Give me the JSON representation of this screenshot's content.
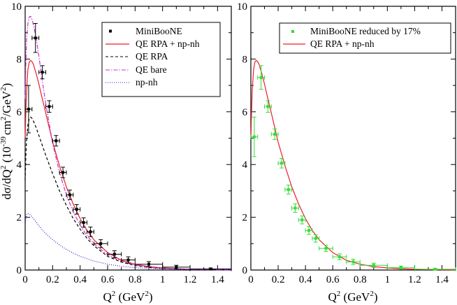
{
  "chart_data": [
    {
      "type": "line",
      "panel": "left",
      "xlabel": "Q",
      "xlabel_sup": "2",
      "xlabel_unit": " (GeV",
      "xlabel_unit_sup": "2",
      "xlabel_close": ")",
      "ylabel": {
        "lhs": "dσ/dQ",
        "lhs_sup": "2",
        "unit_open": " (10",
        "unit_exp": "-39",
        "unit_cm": "cm",
        "unit_cm_sup": "2",
        "unit_slash": "/GeV",
        "unit_gev_sup": "2",
        "unit_close": ")"
      },
      "xlim": [
        0,
        1.5
      ],
      "ylim": [
        0,
        10
      ],
      "xticks": [
        "0",
        "0.2",
        "0.4",
        "0.6",
        "0.8",
        "1",
        "1.2",
        "1.4"
      ],
      "yticks": [
        "0",
        "2",
        "4",
        "6",
        "8",
        "10"
      ],
      "legend": [
        {
          "label": "MiniBooNE",
          "style": "marker",
          "color": "#000000"
        },
        {
          "label": "QE RPA + np-nh",
          "style": "solid",
          "color": "#e8202a"
        },
        {
          "label": "QE RPA",
          "style": "dashed",
          "color": "#000000"
        },
        {
          "label": "QE bare",
          "style": "dashdot",
          "color": "#cc33cc"
        },
        {
          "label": "np-nh",
          "style": "dotted",
          "color": "#2222cc"
        }
      ],
      "points": [
        {
          "x": 0.025,
          "y": 6.1,
          "xerr": 0.025,
          "yerr": 0.9
        },
        {
          "x": 0.075,
          "y": 8.8,
          "xerr": 0.025,
          "yerr": 0.55
        },
        {
          "x": 0.125,
          "y": 7.5,
          "xerr": 0.025,
          "yerr": 0.25
        },
        {
          "x": 0.175,
          "y": 6.2,
          "xerr": 0.025,
          "yerr": 0.22
        },
        {
          "x": 0.225,
          "y": 4.9,
          "xerr": 0.025,
          "yerr": 0.2
        },
        {
          "x": 0.275,
          "y": 3.7,
          "xerr": 0.025,
          "yerr": 0.2
        },
        {
          "x": 0.325,
          "y": 2.85,
          "xerr": 0.025,
          "yerr": 0.18
        },
        {
          "x": 0.375,
          "y": 2.3,
          "xerr": 0.025,
          "yerr": 0.18
        },
        {
          "x": 0.425,
          "y": 1.8,
          "xerr": 0.025,
          "yerr": 0.18
        },
        {
          "x": 0.475,
          "y": 1.45,
          "xerr": 0.025,
          "yerr": 0.18
        },
        {
          "x": 0.55,
          "y": 1.0,
          "xerr": 0.05,
          "yerr": 0.15
        },
        {
          "x": 0.65,
          "y": 0.6,
          "xerr": 0.05,
          "yerr": 0.13
        },
        {
          "x": 0.75,
          "y": 0.38,
          "xerr": 0.05,
          "yerr": 0.12
        },
        {
          "x": 0.9,
          "y": 0.22,
          "xerr": 0.1,
          "yerr": 0.1
        },
        {
          "x": 1.1,
          "y": 0.11,
          "xerr": 0.1,
          "yerr": 0.07
        },
        {
          "x": 1.35,
          "y": 0.04,
          "xerr": 0.15,
          "yerr": 0.04
        }
      ],
      "series": [
        {
          "name": "QE RPA + np-nh",
          "style": "solid",
          "color": "#e8202a",
          "x": [
            0,
            0.005,
            0.01,
            0.02,
            0.03,
            0.04,
            0.05,
            0.06,
            0.08,
            0.1,
            0.12,
            0.15,
            0.2,
            0.25,
            0.3,
            0.35,
            0.4,
            0.45,
            0.5,
            0.6,
            0.7,
            0.8,
            0.9,
            1.0,
            1.1,
            1.2,
            1.3,
            1.4,
            1.5
          ],
          "y": [
            5.0,
            6.0,
            6.8,
            7.6,
            7.9,
            7.95,
            7.9,
            7.8,
            7.45,
            7.05,
            6.6,
            5.95,
            4.85,
            3.95,
            3.15,
            2.5,
            1.95,
            1.5,
            1.15,
            0.66,
            0.37,
            0.22,
            0.13,
            0.08,
            0.05,
            0.03,
            0.02,
            0.012,
            0.008
          ]
        },
        {
          "name": "QE RPA",
          "style": "dashed",
          "color": "#000000",
          "x": [
            0,
            0.005,
            0.01,
            0.02,
            0.03,
            0.04,
            0.05,
            0.06,
            0.08,
            0.1,
            0.12,
            0.15,
            0.2,
            0.25,
            0.3,
            0.35,
            0.4,
            0.45,
            0.5,
            0.6,
            0.7,
            0.8,
            0.9,
            1.0,
            1.2,
            1.4,
            1.5
          ],
          "y": [
            3.4,
            4.3,
            4.9,
            5.5,
            5.75,
            5.8,
            5.75,
            5.65,
            5.4,
            5.1,
            4.8,
            4.35,
            3.65,
            3.0,
            2.45,
            1.95,
            1.55,
            1.2,
            0.92,
            0.52,
            0.3,
            0.17,
            0.1,
            0.06,
            0.025,
            0.01,
            0.006
          ]
        },
        {
          "name": "QE bare",
          "style": "dashdot",
          "color": "#cc33cc",
          "x": [
            0,
            0.005,
            0.01,
            0.02,
            0.03,
            0.04,
            0.05,
            0.06,
            0.08,
            0.1,
            0.12,
            0.15,
            0.2,
            0.25,
            0.3,
            0.35,
            0.4,
            0.45,
            0.5,
            0.6,
            0.7,
            0.8,
            0.9,
            1.0,
            1.2,
            1.4,
            1.5
          ],
          "y": [
            6.5,
            7.8,
            8.7,
            9.35,
            9.6,
            9.62,
            9.5,
            9.3,
            8.8,
            8.1,
            7.35,
            6.3,
            4.8,
            3.7,
            2.85,
            2.2,
            1.7,
            1.3,
            1.0,
            0.58,
            0.33,
            0.19,
            0.11,
            0.065,
            0.025,
            0.01,
            0.006
          ]
        },
        {
          "name": "np-nh",
          "style": "dotted",
          "color": "#2222cc",
          "x": [
            0,
            0.005,
            0.01,
            0.02,
            0.03,
            0.04,
            0.05,
            0.06,
            0.08,
            0.1,
            0.12,
            0.15,
            0.2,
            0.25,
            0.3,
            0.35,
            0.4,
            0.5,
            0.6,
            0.7,
            0.8,
            0.9,
            1.0,
            1.2,
            1.4,
            1.5
          ],
          "y": [
            1.7,
            1.95,
            2.1,
            2.15,
            2.12,
            2.08,
            2.02,
            1.95,
            1.82,
            1.68,
            1.55,
            1.38,
            1.15,
            0.95,
            0.78,
            0.64,
            0.52,
            0.34,
            0.22,
            0.14,
            0.09,
            0.06,
            0.04,
            0.02,
            0.01,
            0.005
          ]
        }
      ]
    },
    {
      "type": "line",
      "panel": "right",
      "xlabel": "Q",
      "xlabel_sup": "2",
      "xlabel_unit": " (GeV",
      "xlabel_unit_sup": "2",
      "xlabel_close": ")",
      "xlim": [
        0,
        1.5
      ],
      "ylim": [
        0,
        10
      ],
      "xticks": [
        "0",
        "0.2",
        "0.4",
        "0.6",
        "0.8",
        "1",
        "1.2",
        "1.4"
      ],
      "yticks": [
        "0",
        "2",
        "4",
        "6",
        "8",
        "10"
      ],
      "legend": [
        {
          "label": "MiniBooNE reduced by 17%",
          "style": "marker",
          "color": "#33dd33"
        },
        {
          "label": "QE RPA + np-nh",
          "style": "solid",
          "color": "#e8202a"
        }
      ],
      "points": [
        {
          "x": 0.025,
          "y": 5.05,
          "xerr": 0.025,
          "yerr": 0.75
        },
        {
          "x": 0.075,
          "y": 7.3,
          "xerr": 0.025,
          "yerr": 0.45
        },
        {
          "x": 0.125,
          "y": 6.2,
          "xerr": 0.025,
          "yerr": 0.22
        },
        {
          "x": 0.175,
          "y": 5.15,
          "xerr": 0.025,
          "yerr": 0.2
        },
        {
          "x": 0.225,
          "y": 4.05,
          "xerr": 0.025,
          "yerr": 0.18
        },
        {
          "x": 0.275,
          "y": 3.05,
          "xerr": 0.025,
          "yerr": 0.17
        },
        {
          "x": 0.325,
          "y": 2.35,
          "xerr": 0.025,
          "yerr": 0.16
        },
        {
          "x": 0.375,
          "y": 1.9,
          "xerr": 0.025,
          "yerr": 0.15
        },
        {
          "x": 0.425,
          "y": 1.5,
          "xerr": 0.025,
          "yerr": 0.15
        },
        {
          "x": 0.475,
          "y": 1.2,
          "xerr": 0.025,
          "yerr": 0.14
        },
        {
          "x": 0.55,
          "y": 0.82,
          "xerr": 0.05,
          "yerr": 0.12
        },
        {
          "x": 0.65,
          "y": 0.5,
          "xerr": 0.05,
          "yerr": 0.11
        },
        {
          "x": 0.75,
          "y": 0.31,
          "xerr": 0.05,
          "yerr": 0.1
        },
        {
          "x": 0.9,
          "y": 0.18,
          "xerr": 0.1,
          "yerr": 0.08
        },
        {
          "x": 1.1,
          "y": 0.09,
          "xerr": 0.1,
          "yerr": 0.06
        },
        {
          "x": 1.35,
          "y": 0.03,
          "xerr": 0.15,
          "yerr": 0.03
        }
      ],
      "series": [
        {
          "name": "QE RPA + np-nh",
          "style": "solid",
          "color": "#e8202a",
          "x": [
            0,
            0.005,
            0.01,
            0.02,
            0.03,
            0.04,
            0.05,
            0.06,
            0.08,
            0.1,
            0.12,
            0.15,
            0.2,
            0.25,
            0.3,
            0.35,
            0.4,
            0.45,
            0.5,
            0.6,
            0.7,
            0.8,
            0.9,
            1.0,
            1.1,
            1.2,
            1.3,
            1.4,
            1.5
          ],
          "y": [
            5.0,
            6.0,
            6.8,
            7.6,
            7.9,
            7.95,
            7.9,
            7.8,
            7.45,
            7.05,
            6.6,
            5.95,
            4.85,
            3.95,
            3.15,
            2.5,
            1.95,
            1.5,
            1.15,
            0.66,
            0.37,
            0.22,
            0.13,
            0.08,
            0.05,
            0.03,
            0.02,
            0.012,
            0.008
          ]
        }
      ]
    }
  ]
}
